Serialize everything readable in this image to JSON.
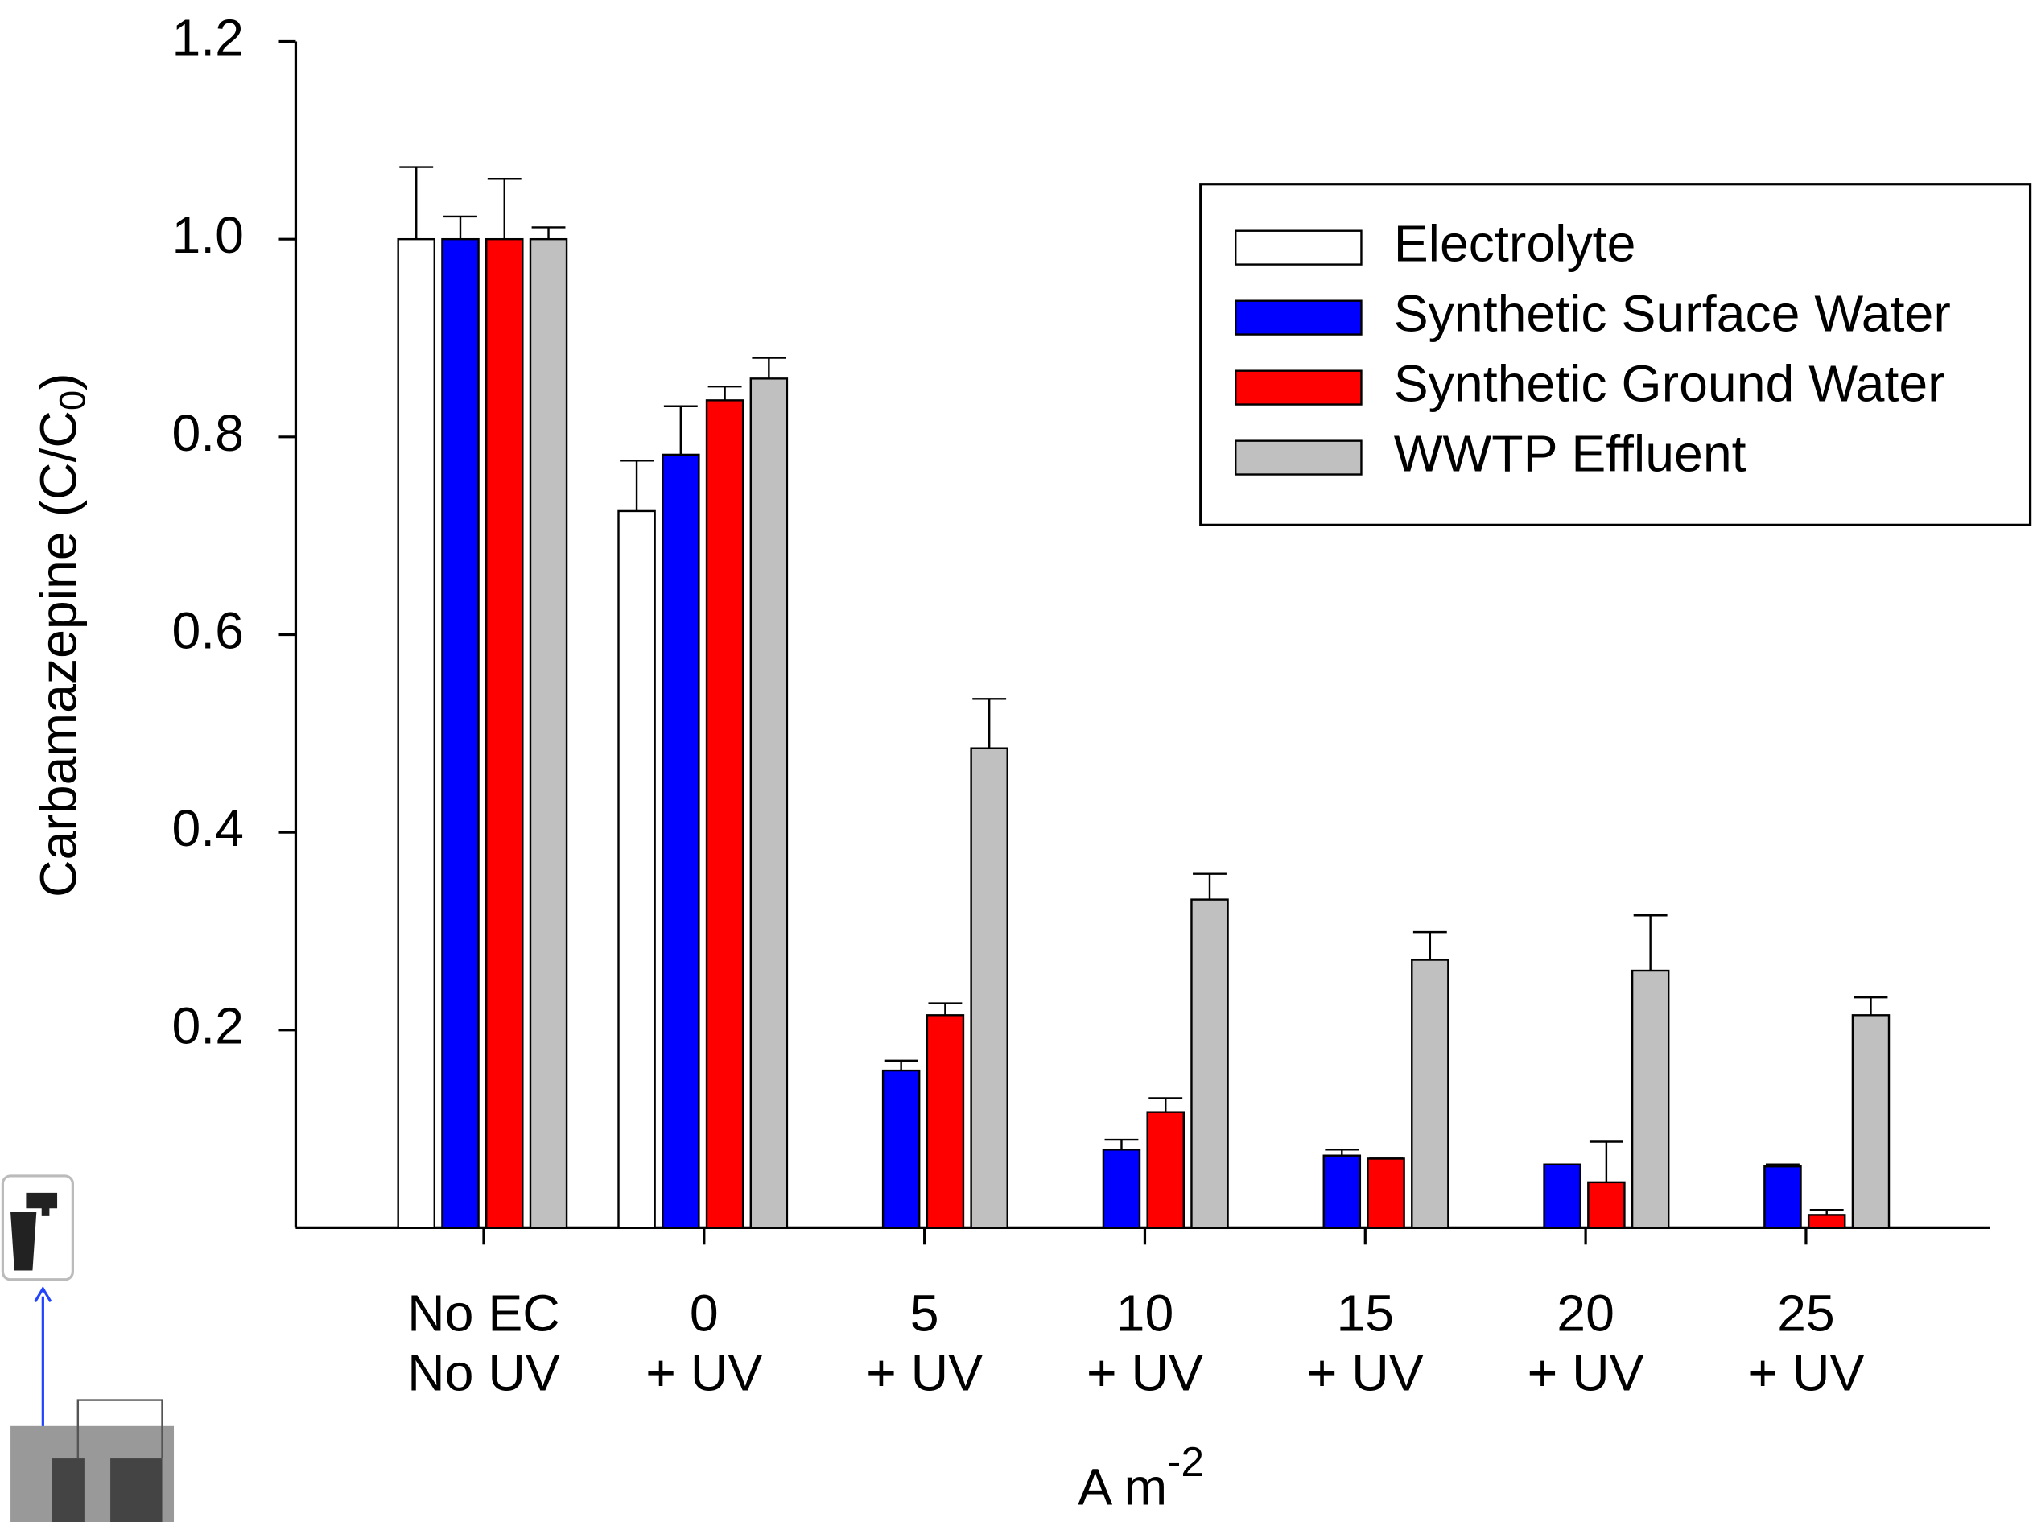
{
  "chart_data": {
    "type": "bar",
    "ylabel": [
      "Carbamazepine (C/C",
      "0",
      ")"
    ],
    "xlabel": [
      "A m",
      "-2"
    ],
    "categories": [
      [
        "No EC",
        "No UV"
      ],
      [
        "0",
        "+ UV"
      ],
      [
        "5",
        "+ UV"
      ],
      [
        "10",
        "+ UV"
      ],
      [
        "15",
        "+ UV"
      ],
      [
        "20",
        "+ UV"
      ],
      [
        "25",
        "+ UV"
      ]
    ],
    "series": [
      {
        "name": "Electrolyte",
        "color": "#ffffff",
        "values": [
          1.0,
          0.725,
          null,
          null,
          null,
          null,
          null
        ],
        "errors": [
          0.073,
          0.051,
          null,
          null,
          null,
          null,
          null
        ]
      },
      {
        "name": "Synthetic Surface Water",
        "color": "#0000ff",
        "values": [
          1.0,
          0.782,
          0.159,
          0.079,
          0.073,
          0.064,
          0.062
        ],
        "errors": [
          0.023,
          0.049,
          0.01,
          0.01,
          0.006,
          0,
          0.002
        ]
      },
      {
        "name": "Synthetic Ground Water",
        "color": "#ff0000",
        "values": [
          1.0,
          0.837,
          0.215,
          0.117,
          0.07,
          0.046,
          0.013
        ],
        "errors": [
          0.061,
          0.014,
          0.012,
          0.014,
          0,
          0.041,
          0.005
        ]
      },
      {
        "name": "WWTP Effluent",
        "color": "#c0c0c0",
        "values": [
          1.0,
          0.859,
          0.485,
          0.332,
          0.271,
          0.26,
          0.215
        ],
        "errors": [
          0.012,
          0.021,
          0.05,
          0.026,
          0.028,
          0.056,
          0.018
        ]
      }
    ],
    "ylim": [
      0,
      1.2
    ],
    "yticks": [
      {
        "value": 0.2,
        "label": "0.2"
      },
      {
        "value": 0.4,
        "label": "0.4"
      },
      {
        "value": 0.6,
        "label": "0.6"
      },
      {
        "value": 0.8,
        "label": "0.8"
      },
      {
        "value": 1,
        "label": "1.0"
      },
      {
        "value": 1.2,
        "label": "1.2"
      }
    ],
    "legend": "upper right"
  }
}
